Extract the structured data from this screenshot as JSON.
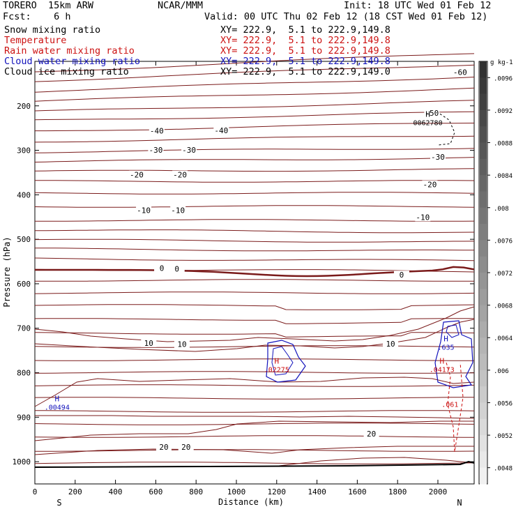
{
  "header": {
    "model": "TORERO  15km ARW",
    "org": "NCAR/MMM",
    "init": "Init: 18 UTC Wed 01 Feb 12",
    "fcst": "Fcst:    6 h",
    "valid": "Valid: 00 UTC Thu 02 Feb 12 (18 CST Wed 01 Feb 12)"
  },
  "fields": [
    {
      "name": "Snow mixing ratio",
      "xy": "XY= 222.9,  5.1 to 222.9,149.8",
      "color": "#000000"
    },
    {
      "name": "Temperature",
      "xy": "XY= 222.9,  5.1 to 222.9,149.8",
      "color": "#cc1111"
    },
    {
      "name": "Rain water mixing ratio",
      "xy": "XY= 222.9,  5.1 to 222.9,149.8",
      "color": "#cc1111"
    },
    {
      "name": "Cloud water mixing ratio",
      "xy": "XY= 222.9,  5.1 to 222.9,149.8",
      "color": "#1111bb"
    },
    {
      "name": "Cloud ice mixing ratio",
      "xy": "XY= 222.9,  5.1 to 222.9,149.0",
      "color": "#000000"
    }
  ],
  "chart_data": {
    "type": "contour-cross-section",
    "xlabel": "Distance (km)",
    "ylabel": "Pressure (hPa)",
    "xlim": [
      0,
      2180
    ],
    "ylim": [
      1050,
      100
    ],
    "x_ticks": [
      0,
      200,
      400,
      600,
      800,
      1000,
      1200,
      1400,
      1600,
      1800,
      2000
    ],
    "y_ticks": [
      200,
      300,
      400,
      500,
      600,
      700,
      800,
      900,
      1000
    ],
    "endpoints": {
      "left": "S",
      "right": "N"
    },
    "temperature_labels": [
      {
        "text": "-60",
        "x": 2110,
        "p": 124
      },
      {
        "text": "-50",
        "x": 1970,
        "p": 216
      },
      {
        "text": "-40",
        "x": 605,
        "p": 256
      },
      {
        "text": "-40",
        "x": 925,
        "p": 255
      },
      {
        "text": "-30",
        "x": 600,
        "p": 299
      },
      {
        "text": "-30",
        "x": 765,
        "p": 299
      },
      {
        "text": "-30",
        "x": 2000,
        "p": 315
      },
      {
        "text": "-20",
        "x": 505,
        "p": 355
      },
      {
        "text": "-20",
        "x": 720,
        "p": 355
      },
      {
        "text": "-20",
        "x": 1960,
        "p": 377
      },
      {
        "text": "-10",
        "x": 540,
        "p": 435
      },
      {
        "text": "-10",
        "x": 710,
        "p": 435
      },
      {
        "text": "-10",
        "x": 1925,
        "p": 450
      },
      {
        "text": "0",
        "x": 630,
        "p": 565
      },
      {
        "text": "0",
        "x": 705,
        "p": 566
      },
      {
        "text": "0",
        "x": 1820,
        "p": 580
      },
      {
        "text": "10",
        "x": 565,
        "p": 733
      },
      {
        "text": "10",
        "x": 730,
        "p": 736
      },
      {
        "text": "10",
        "x": 1765,
        "p": 735
      },
      {
        "text": "20",
        "x": 1670,
        "p": 937
      },
      {
        "text": "20",
        "x": 640,
        "p": 967
      },
      {
        "text": "20",
        "x": 750,
        "p": 967
      }
    ],
    "maxima": [
      {
        "label": "H",
        "value": "0062780",
        "x": 1950,
        "p": 240,
        "color": "#000000"
      },
      {
        "label": "H",
        "value": ".00494",
        "x": 110,
        "p": 880,
        "color": "#1111bb"
      },
      {
        "label": "H",
        "value": ".02275",
        "x": 1200,
        "p": 795,
        "color": "#cc1111"
      },
      {
        "label": "H",
        "value": ".04173",
        "x": 2020,
        "p": 795,
        "color": "#cc1111"
      },
      {
        "label": "H",
        "value": ".635",
        "x": 2040,
        "p": 745,
        "color": "#1111bb"
      },
      {
        "label": "",
        "value": ".061",
        "x": 2060,
        "p": 874,
        "color": "#cc1111"
      }
    ],
    "colorbar": {
      "unit": "g kg-1",
      "min": 0.0046,
      "max": 0.0098,
      "labels": [
        ".0096",
        ".0092",
        ".0088",
        ".0084",
        ".008",
        ".0076",
        ".0072",
        ".0068",
        ".0064",
        ".006",
        ".0056",
        ".0052",
        ".0048"
      ]
    }
  }
}
